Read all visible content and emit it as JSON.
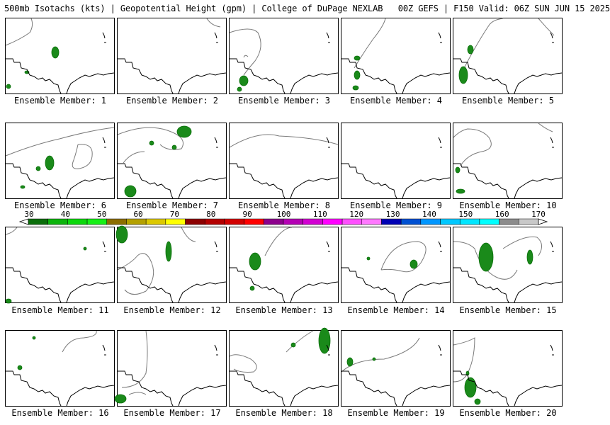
{
  "header": {
    "text": "500mb Isotachs (kts) | Geopotential Height (gpm) | College of DuPage NEXLAB   00Z GEFS | F150 Valid: 06Z SUN JUN 15 2025"
  },
  "colorbar": {
    "ticks": [
      "30",
      "40",
      "50",
      "60",
      "70",
      "80",
      "90",
      "100",
      "110",
      "120",
      "130",
      "140",
      "150",
      "160",
      "170"
    ],
    "colors": [
      "#0a6e0a",
      "#0cb40c",
      "#0cd80c",
      "#16f016",
      "#8c6e00",
      "#b4a000",
      "#dcc800",
      "#ffff00",
      "#8c0000",
      "#b40000",
      "#d20000",
      "#ff0000",
      "#8c008c",
      "#b400b4",
      "#d200d2",
      "#ff00ff",
      "#ff50ff",
      "#ff78ff",
      "#0000b4",
      "#0050d2",
      "#0096ff",
      "#00c8ff",
      "#00e6ff",
      "#00ffff",
      "#8c8c8c",
      "#c8c8c8"
    ]
  },
  "members": [
    {
      "label": "Ensemble Member: 1"
    },
    {
      "label": "Ensemble Member: 2"
    },
    {
      "label": "Ensemble Member: 3"
    },
    {
      "label": "Ensemble Member: 4"
    },
    {
      "label": "Ensemble Member: 5"
    },
    {
      "label": "Ensemble Member: 6"
    },
    {
      "label": "Ensemble Member: 7"
    },
    {
      "label": "Ensemble Member: 8"
    },
    {
      "label": "Ensemble Member: 9"
    },
    {
      "label": "Ensemble Member: 10"
    },
    {
      "label": "Ensemble Member: 11"
    },
    {
      "label": "Ensemble Member: 12"
    },
    {
      "label": "Ensemble Member: 13"
    },
    {
      "label": "Ensemble Member: 14"
    },
    {
      "label": "Ensemble Member: 15"
    },
    {
      "label": "Ensemble Member: 16"
    },
    {
      "label": "Ensemble Member: 17"
    },
    {
      "label": "Ensemble Member: 18"
    },
    {
      "label": "Ensemble Member: 19"
    },
    {
      "label": "Ensemble Member: 20"
    }
  ]
}
